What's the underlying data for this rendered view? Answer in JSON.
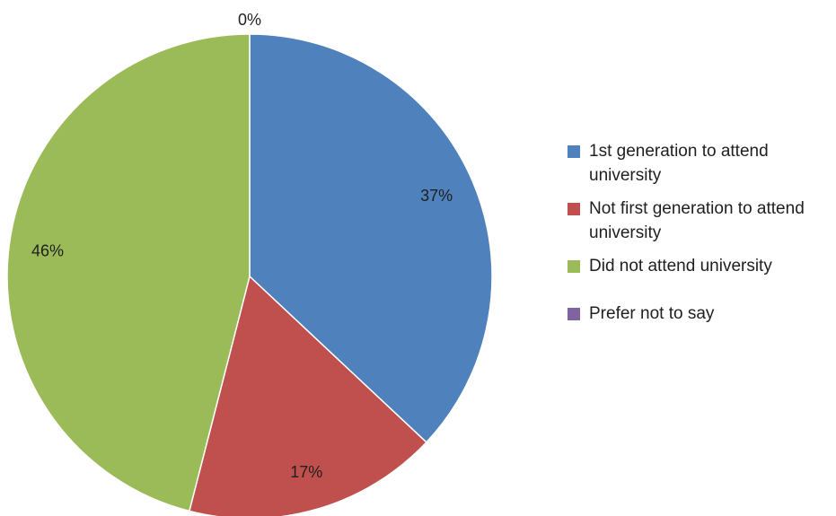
{
  "chart_data": {
    "type": "pie",
    "title": "",
    "slices": [
      {
        "label": "1st generation to attend university",
        "value": 37,
        "value_label": "37%",
        "color": "#4F81BD"
      },
      {
        "label": "Not first generation to attend university",
        "value": 17,
        "value_label": "17%",
        "color": "#C0504D"
      },
      {
        "label": "Did not attend university",
        "value": 46,
        "value_label": "46%",
        "color": "#9BBB59"
      },
      {
        "label": "Prefer not to say",
        "value": 0,
        "value_label": "0%",
        "color": "#8064A2"
      }
    ],
    "legend_position": "right"
  }
}
